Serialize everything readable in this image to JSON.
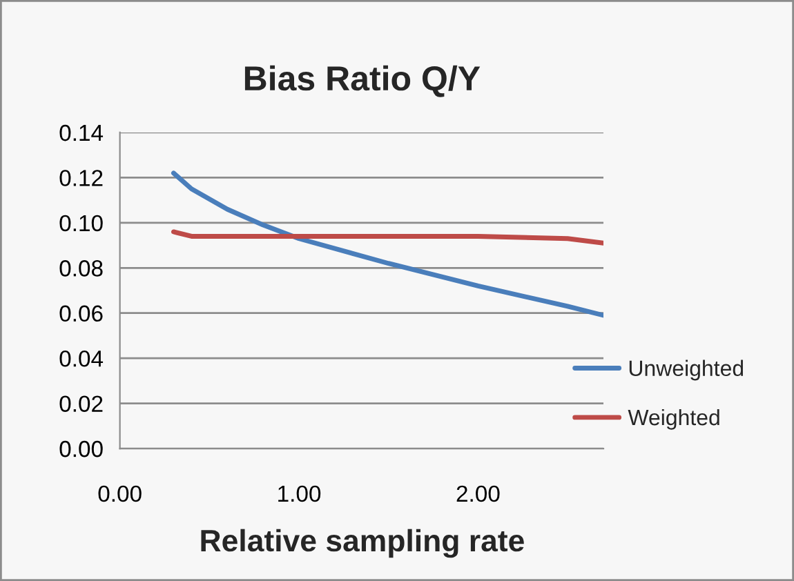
{
  "chart_data": {
    "type": "line",
    "title": "Bias Ratio Q/Y",
    "xlabel": "Relative sampling rate",
    "xlim": [
      0,
      2.7
    ],
    "xticks": [
      {
        "value": 0,
        "label": "0.00"
      },
      {
        "value": 1,
        "label": "1.00"
      },
      {
        "value": 2,
        "label": "2.00"
      }
    ],
    "ylim": [
      0,
      0.14
    ],
    "yticks": [
      {
        "value": 0,
        "label": "0.00"
      },
      {
        "value": 0.02,
        "label": "0.02"
      },
      {
        "value": 0.04,
        "label": "0.04"
      },
      {
        "value": 0.06,
        "label": "0.06"
      },
      {
        "value": 0.08,
        "label": "0.08"
      },
      {
        "value": 0.1,
        "label": "0.10"
      },
      {
        "value": 0.12,
        "label": "0.12"
      },
      {
        "value": 0.14,
        "label": "0.14"
      }
    ],
    "grid": "y",
    "legend": "right",
    "marker": "none",
    "line_style": "solid",
    "x": [
      0.3,
      0.4,
      0.6,
      0.8,
      1.0,
      1.5,
      2.0,
      2.5,
      2.7
    ],
    "series": [
      {
        "name": "Unweighted",
        "color": "#4a7ebb",
        "values": [
          0.122,
          0.115,
          0.106,
          0.099,
          0.093,
          0.082,
          0.072,
          0.063,
          0.059
        ]
      },
      {
        "name": "Weighted",
        "color": "#be4b48",
        "values": [
          0.096,
          0.094,
          0.094,
          0.094,
          0.094,
          0.094,
          0.094,
          0.093,
          0.091
        ]
      }
    ]
  }
}
